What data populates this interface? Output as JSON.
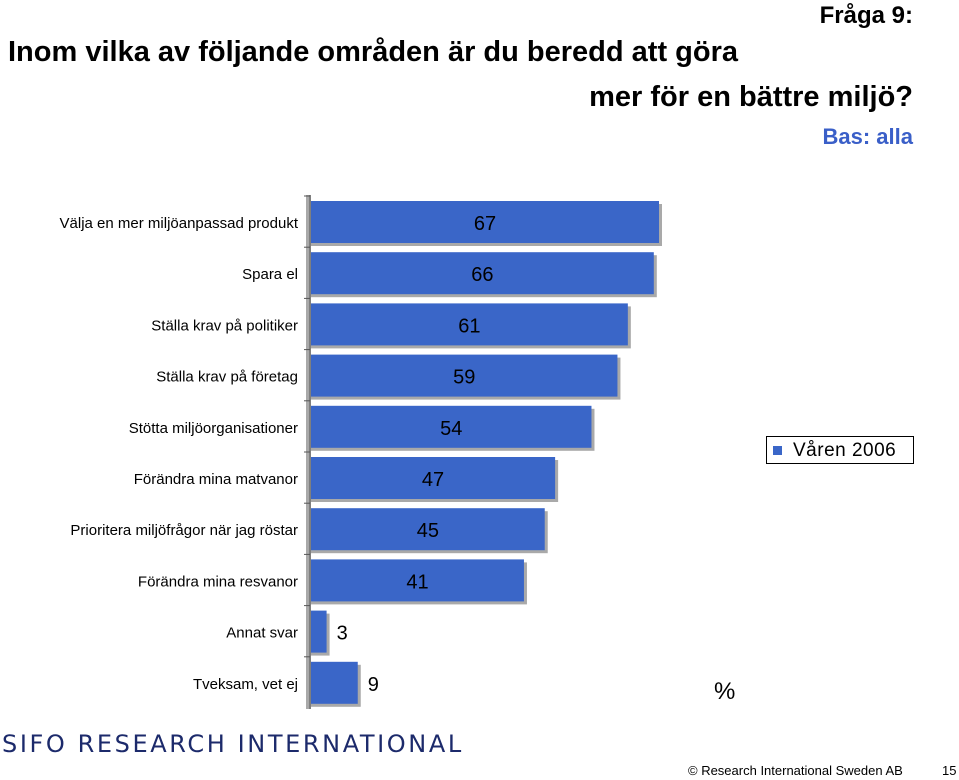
{
  "header": {
    "question_number": "Fråga 9:",
    "title_line1": "Inom vilka av följande områden är du beredd att göra",
    "title_line2": "mer för en bättre miljö?",
    "base": "Bas: alla"
  },
  "chart_data": {
    "type": "bar",
    "orientation": "horizontal",
    "categories": [
      "Välja en mer miljöanpassad produkt",
      "Spara el",
      "Ställa krav på politiker",
      "Ställa krav på företag",
      "Stötta miljöorganisationer",
      "Förändra mina matvanor",
      "Prioritera miljöfrågor när jag röstar",
      "Förändra mina resvanor",
      "Annat svar",
      "Tveksam, vet ej"
    ],
    "series": [
      {
        "name": "Våren 2006",
        "values": [
          67,
          66,
          61,
          59,
          54,
          47,
          45,
          41,
          3,
          9
        ]
      }
    ],
    "xlim": [
      0,
      67
    ],
    "unit": "%",
    "grid": false,
    "legend_position": "right"
  },
  "legend": {
    "label": "Våren 2006"
  },
  "unit_label": "%",
  "footer": {
    "logo_text": "SIFO RESEARCH INTERNATIONAL",
    "copyright": "© Research International Sweden AB",
    "page_number": "15"
  },
  "colors": {
    "bar": "#3a66c8",
    "bar_shadow": "#a9a9a9",
    "accent_text": "#3a5fc8"
  }
}
